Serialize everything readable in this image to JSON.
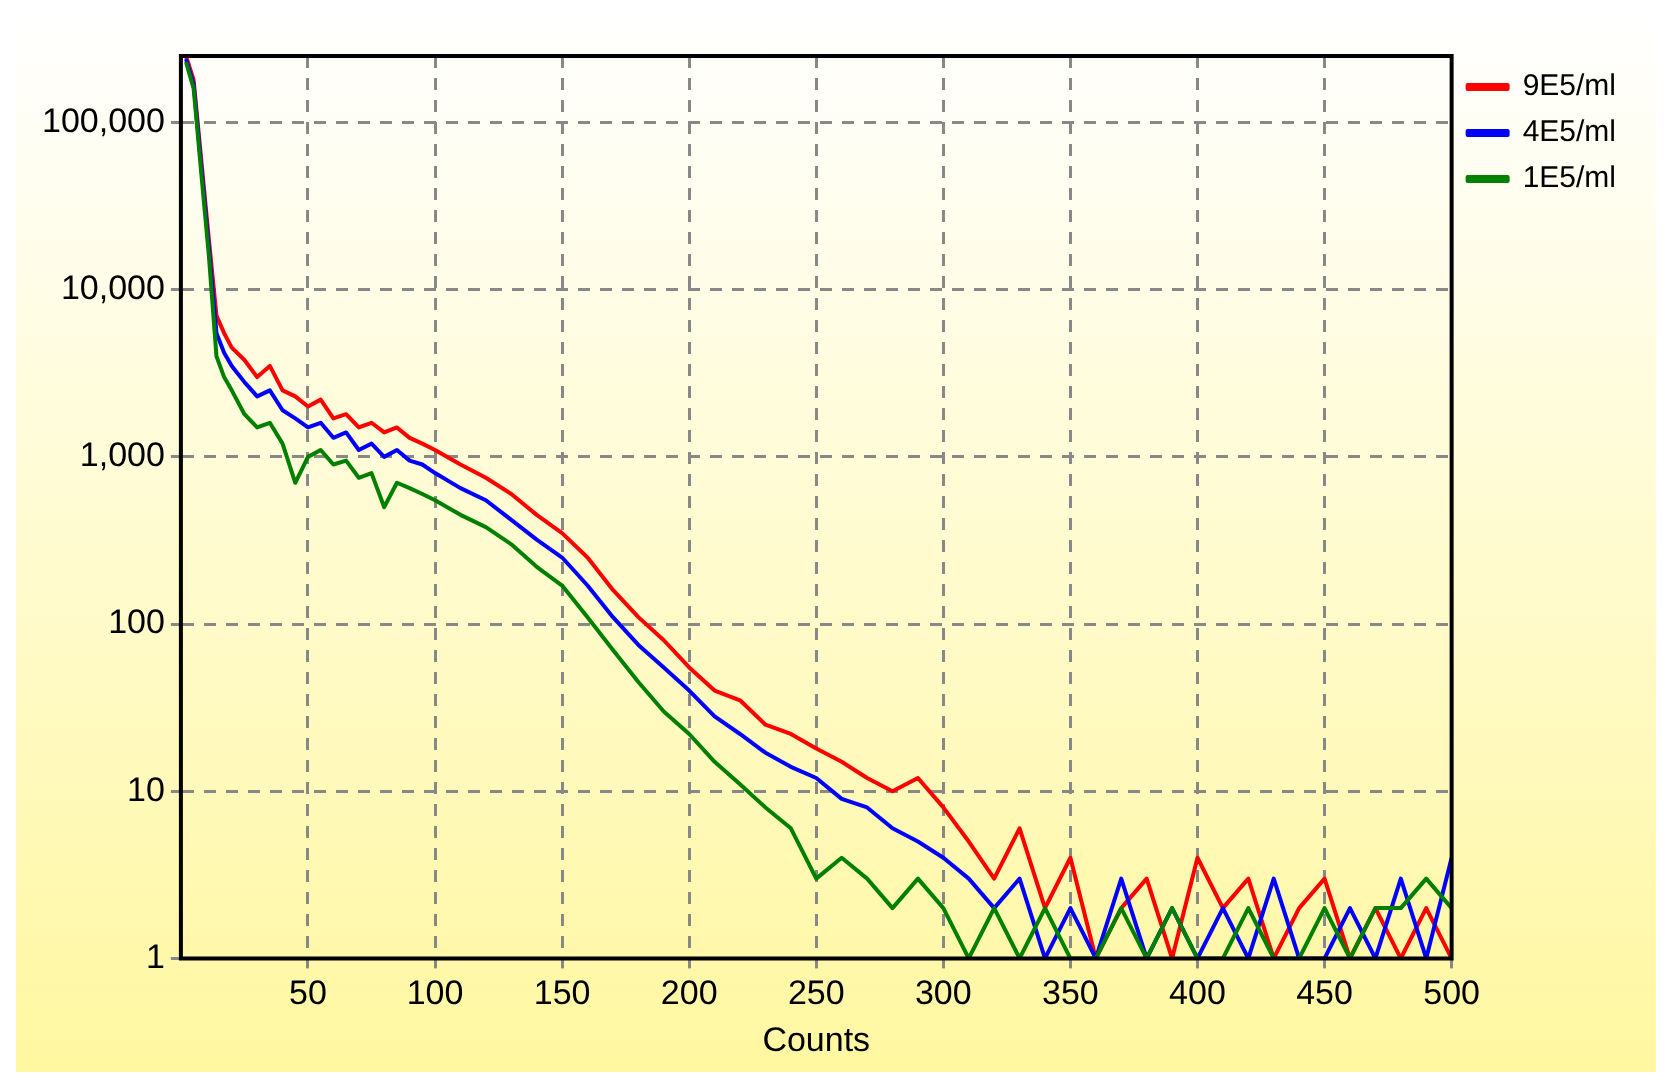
{
  "chart_data": {
    "type": "line",
    "xlabel": "Counts",
    "log": "y",
    "grid": true,
    "legend": "top right",
    "marker": "none",
    "line_style": "solid",
    "x": [
      2,
      5,
      8,
      11,
      14,
      17,
      20,
      25,
      30,
      35,
      40,
      45,
      50,
      55,
      60,
      65,
      70,
      75,
      80,
      85,
      90,
      95,
      100,
      110,
      120,
      130,
      140,
      150,
      160,
      170,
      180,
      190,
      200,
      210,
      220,
      230,
      240,
      250,
      260,
      270,
      280,
      290,
      300,
      310,
      320,
      330,
      340,
      350,
      360,
      370,
      380,
      390,
      400,
      410,
      420,
      430,
      440,
      450,
      460,
      470,
      480,
      490,
      500
    ],
    "xlim": [
      0,
      500
    ],
    "xticks": [
      50,
      100,
      150,
      200,
      250,
      300,
      350,
      400,
      450,
      500
    ],
    "ylim": [
      1,
      250000
    ],
    "yticks": [
      {
        "value": 1,
        "label": "1"
      },
      {
        "value": 10,
        "label": "10"
      },
      {
        "value": 100,
        "label": "100"
      },
      {
        "value": 1000,
        "label": "1,000"
      },
      {
        "value": 10000,
        "label": "10,000"
      },
      {
        "value": 100000,
        "label": "100,000"
      }
    ],
    "series": [
      {
        "name": "9E5/ml",
        "color": "#ff0000",
        "values": [
          250000,
          180000,
          60000,
          20000,
          7000,
          5500,
          4500,
          3800,
          3000,
          3500,
          2500,
          2300,
          2000,
          2200,
          1700,
          1800,
          1500,
          1600,
          1400,
          1500,
          1300,
          1200,
          1100,
          900,
          750,
          600,
          450,
          350,
          250,
          160,
          110,
          80,
          55,
          40,
          35,
          25,
          22,
          18,
          15,
          12,
          10,
          12,
          8,
          5,
          3,
          6,
          2,
          4,
          1,
          2,
          3,
          1,
          4,
          2,
          3,
          1,
          2,
          3,
          1,
          2,
          1,
          2,
          1
        ]
      },
      {
        "name": "4E5/ml",
        "color": "#0000ff",
        "values": [
          240000,
          170000,
          55000,
          18000,
          5500,
          4200,
          3500,
          2800,
          2300,
          2500,
          1900,
          1700,
          1500,
          1600,
          1300,
          1400,
          1100,
          1200,
          1000,
          1100,
          950,
          900,
          800,
          650,
          550,
          420,
          320,
          250,
          170,
          110,
          75,
          55,
          40,
          28,
          22,
          17,
          14,
          12,
          9,
          8,
          6,
          5,
          4,
          3,
          2,
          3,
          1,
          2,
          1,
          3,
          1,
          2,
          1,
          2,
          1,
          3,
          1,
          1,
          2,
          1,
          3,
          1,
          4
        ]
      },
      {
        "name": "1E5/ml",
        "color": "#008000",
        "values": [
          230000,
          160000,
          50000,
          16000,
          4000,
          3000,
          2500,
          1800,
          1500,
          1600,
          1200,
          700,
          1000,
          1100,
          900,
          950,
          750,
          800,
          500,
          700,
          650,
          600,
          550,
          450,
          380,
          300,
          220,
          170,
          110,
          70,
          45,
          30,
          22,
          15,
          11,
          8,
          6,
          3,
          4,
          3,
          2,
          3,
          2,
          1,
          2,
          1,
          2,
          1,
          1,
          2,
          1,
          2,
          1,
          1,
          2,
          1,
          1,
          2,
          1,
          2,
          2,
          3,
          2
        ]
      }
    ]
  }
}
